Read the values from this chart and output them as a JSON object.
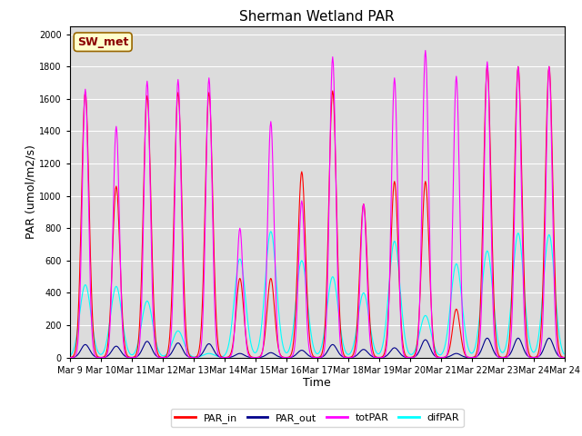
{
  "title": "Sherman Wetland PAR",
  "xlabel": "Time",
  "ylabel": "PAR (umol/m2/s)",
  "ylim": [
    0,
    2050
  ],
  "yticks": [
    0,
    200,
    400,
    600,
    800,
    1000,
    1200,
    1400,
    1600,
    1800,
    2000
  ],
  "label_text": "SW_met",
  "label_bg": "#FFFFCC",
  "label_text_color": "#8B0000",
  "series_colors": {
    "PAR_in": "#FF0000",
    "PAR_out": "#00008B",
    "totPAR": "#FF00FF",
    "difPAR": "#00FFFF"
  },
  "background_color": "#DCDCDC",
  "fig_bg": "#FFFFFF",
  "days": [
    "Mar 9",
    "Mar 10",
    "Mar 11",
    "Mar 12",
    "Mar 13",
    "Mar 14",
    "Mar 15",
    "Mar 16",
    "Mar 17",
    "Mar 18",
    "Mar 19",
    "Mar 20",
    "Mar 21",
    "Mar 22",
    "Mar 23",
    "Mar 24"
  ],
  "day_peaks_PAR_in": [
    1640,
    1060,
    1620,
    1640,
    1640,
    490,
    490,
    1150,
    1650,
    950,
    1090,
    1090,
    300,
    1800,
    1800,
    1800
  ],
  "day_peaks_PAR_out": [
    80,
    70,
    100,
    90,
    85,
    25,
    30,
    45,
    80,
    50,
    60,
    110,
    25,
    120,
    120,
    120
  ],
  "day_peaks_totPAR": [
    1660,
    1430,
    1710,
    1720,
    1730,
    800,
    1460,
    970,
    1860,
    950,
    1730,
    1900,
    1740,
    1830,
    1800,
    1800
  ],
  "day_peaks_difPAR": [
    450,
    440,
    350,
    165,
    25,
    610,
    780,
    600,
    500,
    400,
    720,
    260,
    580,
    660,
    770,
    760
  ],
  "pts_per_day": 48,
  "line_width": 0.8
}
